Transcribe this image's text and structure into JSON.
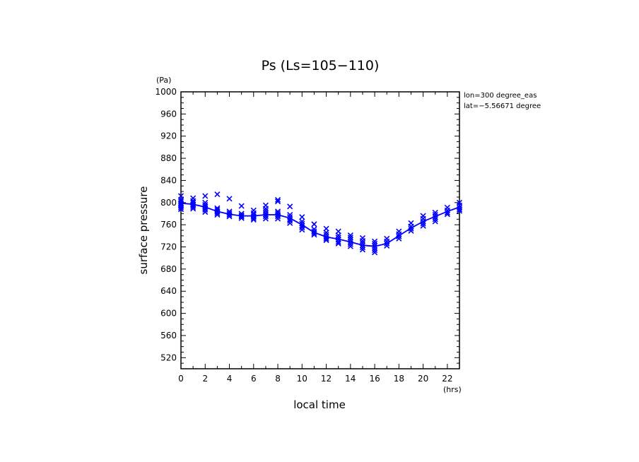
{
  "chart_data": {
    "type": "scatter",
    "title": "Ps (Ls=105−110)",
    "xlabel": "local time",
    "ylabel": "surface pressure",
    "x_unit": "(hrs)",
    "y_unit": "(Pa)",
    "xlim": [
      0,
      23
    ],
    "ylim": [
      500,
      1000
    ],
    "xticks": [
      0,
      2,
      4,
      6,
      8,
      10,
      12,
      14,
      16,
      18,
      20,
      22
    ],
    "yticks": [
      520,
      560,
      600,
      640,
      680,
      720,
      760,
      800,
      840,
      880,
      920,
      960,
      1000
    ],
    "grid": false,
    "annotations": [
      "lon=300 degree_eas",
      "lat=−5.56671 degree"
    ],
    "series_color": "#0000ff",
    "mean_line": {
      "x": [
        0,
        1,
        2,
        3,
        4,
        5,
        6,
        7,
        8,
        9,
        10,
        11,
        12,
        13,
        14,
        15,
        16,
        17,
        18,
        19,
        20,
        21,
        22,
        23
      ],
      "y": [
        799,
        797,
        792,
        784,
        779,
        776,
        776,
        778,
        778,
        772,
        760,
        746,
        738,
        734,
        729,
        723,
        721,
        726,
        740,
        754,
        766,
        775,
        784,
        792
      ]
    },
    "samples": [
      {
        "x": 0,
        "y": [
          812,
          805,
          802,
          799,
          797,
          794,
          791,
          788
        ]
      },
      {
        "x": 1,
        "y": [
          808,
          803,
          800,
          797,
          795,
          792,
          789
        ]
      },
      {
        "x": 2,
        "y": [
          812,
          800,
          796,
          793,
          790,
          787,
          783
        ]
      },
      {
        "x": 3,
        "y": [
          815,
          790,
          787,
          784,
          781,
          778
        ]
      },
      {
        "x": 4,
        "y": [
          807,
          784,
          781,
          778,
          775
        ]
      },
      {
        "x": 5,
        "y": [
          794,
          780,
          777,
          775,
          772
        ]
      },
      {
        "x": 6,
        "y": [
          786,
          781,
          778,
          775,
          772,
          769
        ]
      },
      {
        "x": 7,
        "y": [
          795,
          789,
          785,
          781,
          778,
          775,
          771
        ]
      },
      {
        "x": 8,
        "y": [
          805,
          802,
          784,
          781,
          778,
          775,
          771
        ]
      },
      {
        "x": 9,
        "y": [
          793,
          778,
          774,
          770,
          767,
          763
        ]
      },
      {
        "x": 10,
        "y": [
          774,
          766,
          762,
          758,
          755,
          751
        ]
      },
      {
        "x": 11,
        "y": [
          761,
          752,
          748,
          745,
          742
        ]
      },
      {
        "x": 12,
        "y": [
          753,
          746,
          742,
          738,
          735,
          732
        ]
      },
      {
        "x": 13,
        "y": [
          748,
          741,
          737,
          733,
          729,
          726
        ]
      },
      {
        "x": 14,
        "y": [
          741,
          737,
          733,
          729,
          725,
          721
        ]
      },
      {
        "x": 15,
        "y": [
          736,
          731,
          727,
          723,
          719,
          715
        ]
      },
      {
        "x": 16,
        "y": [
          730,
          726,
          722,
          718,
          714,
          710
        ]
      },
      {
        "x": 17,
        "y": [
          735,
          730,
          726,
          722
        ]
      },
      {
        "x": 18,
        "y": [
          748,
          743,
          739,
          735
        ]
      },
      {
        "x": 19,
        "y": [
          763,
          757,
          753,
          749
        ]
      },
      {
        "x": 20,
        "y": [
          776,
          771,
          766,
          762,
          758
        ]
      },
      {
        "x": 21,
        "y": [
          782,
          778,
          774,
          770,
          766
        ]
      },
      {
        "x": 22,
        "y": [
          791,
          786,
          782,
          779
        ]
      },
      {
        "x": 23,
        "y": [
          800,
          795,
          791,
          788,
          785
        ]
      }
    ]
  }
}
